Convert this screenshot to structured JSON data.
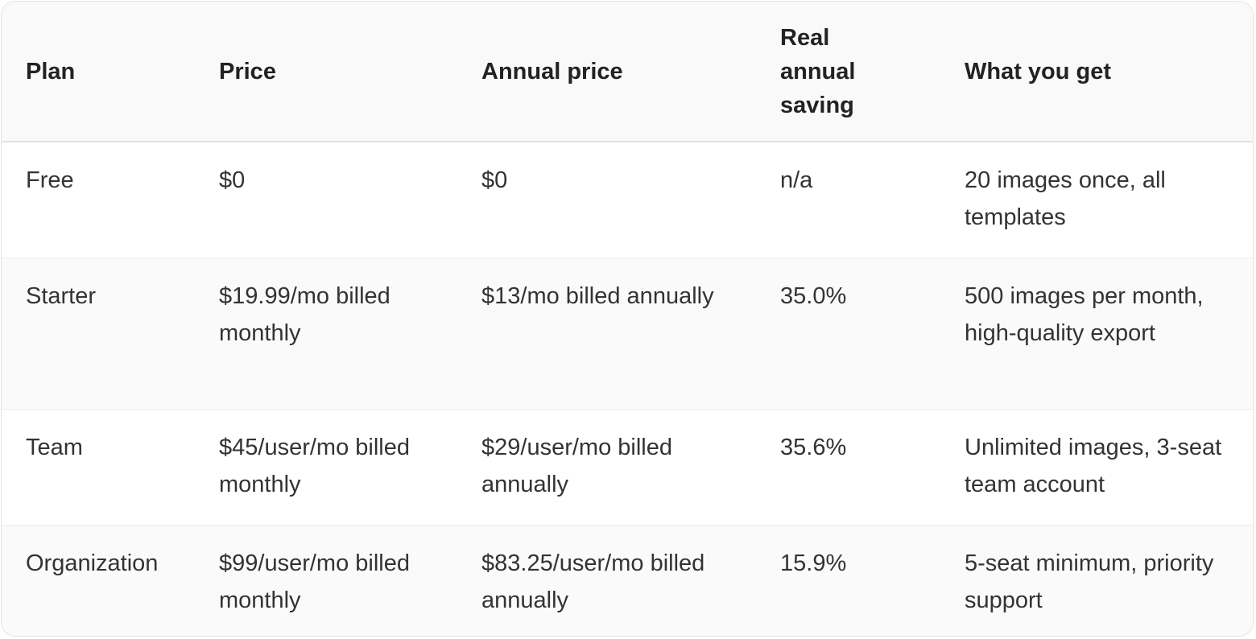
{
  "pricing_table": {
    "headers": [
      "Plan",
      "Price",
      "Annual price",
      "Real annual saving",
      "What you get"
    ],
    "rows": [
      [
        "Free",
        "$0",
        "$0",
        "n/a",
        "20 images once, all templates"
      ],
      [
        "Starter",
        "$19.99/mo billed monthly",
        "$13/mo billed annually",
        "35.0%",
        "500 images per month, high-quality export"
      ],
      [
        "Team",
        "$45/user/mo billed monthly",
        "$29/user/mo billed annually",
        "35.6%",
        "Unlimited images, 3-seat team account"
      ],
      [
        "Organization",
        "$99/user/mo billed monthly",
        "$83.25/user/mo billed annually",
        "15.9%",
        "5-seat minimum, priority support"
      ]
    ]
  },
  "colors": {
    "header_background": "#f9f9f9",
    "striped_row_background": "#fafafa",
    "border": "#e3e3e3",
    "text": "#333333"
  }
}
